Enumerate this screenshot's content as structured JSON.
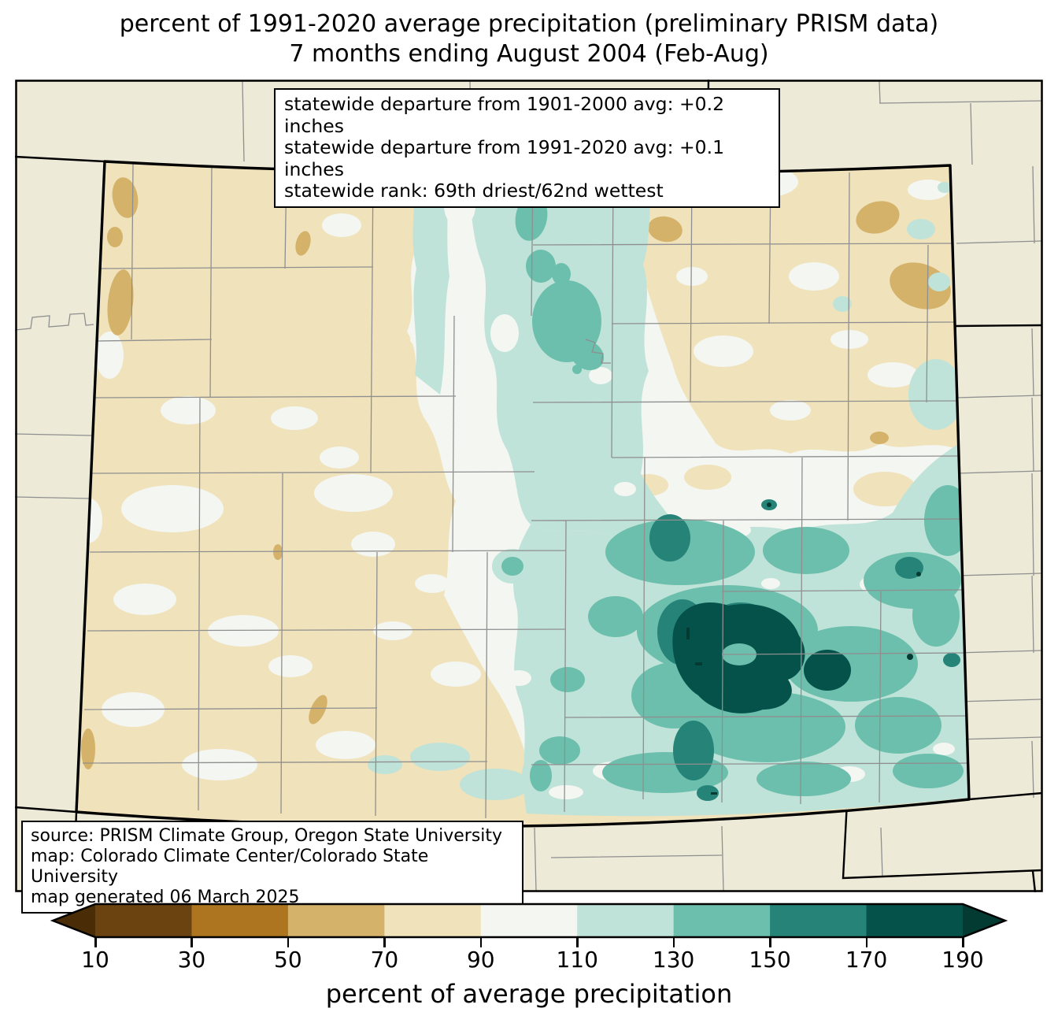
{
  "title": {
    "line1": "percent of 1991-2020 average precipitation (preliminary PRISM data)",
    "line2": "7 months ending August 2004 (Feb-Aug)"
  },
  "stats_box": {
    "lines": [
      "statewide departure from 1901-2000 avg: +0.2 inches",
      "statewide departure from 1991-2020 avg: +0.1 inches",
      "statewide rank: 69th driest/62nd wettest"
    ]
  },
  "source_box": {
    "lines": [
      "source: PRISM Climate Group, Oregon State University",
      "map: Colorado Climate Center/Colorado State University",
      "map generated 06 March 2025"
    ]
  },
  "colorbar": {
    "title": "percent of average precipitation",
    "ticks": [
      "10",
      "30",
      "50",
      "70",
      "90",
      "110",
      "130",
      "150",
      "170",
      "190"
    ],
    "segments": [
      {
        "label": "<10",
        "color": "#4a2c07"
      },
      {
        "label": "10-30",
        "color": "#6b4310"
      },
      {
        "label": "30-50",
        "color": "#ad751f"
      },
      {
        "label": "50-70",
        "color": "#d4b26a"
      },
      {
        "label": "70-90",
        "color": "#f0e2bb"
      },
      {
        "label": "90-110",
        "color": "#f4f6f2"
      },
      {
        "label": "110-130",
        "color": "#bfe3d8"
      },
      {
        "label": "130-150",
        "color": "#6bbfac"
      },
      {
        "label": "150-170",
        "color": "#268378"
      },
      {
        "label": "170-190",
        "color": "#05524a"
      },
      {
        "label": ">190",
        "color": "#033a32"
      }
    ]
  },
  "map": {
    "region": "Colorado",
    "outside_fill": "#edead8",
    "county_line_color": "#8f8f8f",
    "state_line_color": "#000000"
  }
}
